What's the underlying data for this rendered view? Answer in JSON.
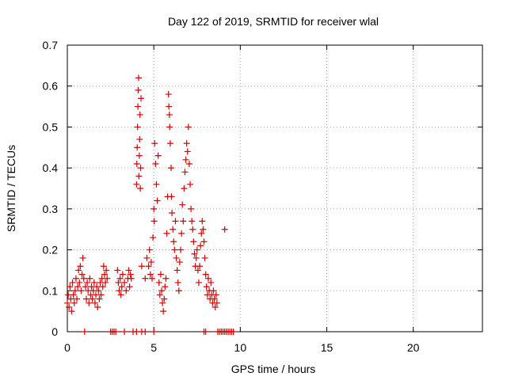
{
  "chart_data": {
    "type": "scatter",
    "title": "Day 122 of 2019, SRMTID for receiver wlal",
    "xlabel": "GPS time / hours",
    "ylabel": "SRMTID / TECUs",
    "xlim": [
      0,
      24
    ],
    "ylim": [
      0,
      0.7
    ],
    "xticks": [
      0,
      5,
      10,
      15,
      20
    ],
    "xtick_labels": [
      "0",
      "5",
      "10",
      "15",
      "20"
    ],
    "yticks": [
      0,
      0.1,
      0.2,
      0.3,
      0.4,
      0.5,
      0.6,
      0.7
    ],
    "ytick_labels": [
      "0",
      "0.1",
      "0.2",
      "0.3",
      "0.4",
      "0.5",
      "0.6",
      "0.7"
    ],
    "grid": true,
    "marker": "+",
    "color": "#d40000",
    "series": [
      {
        "name": "SRMTID",
        "points": [
          [
            0.0,
            0.07
          ],
          [
            0.05,
            0.09
          ],
          [
            0.1,
            0.06
          ],
          [
            0.15,
            0.11
          ],
          [
            0.2,
            0.08
          ],
          [
            0.25,
            0.05
          ],
          [
            0.3,
            0.12
          ],
          [
            0.35,
            0.09
          ],
          [
            0.4,
            0.07
          ],
          [
            0.45,
            0.1
          ],
          [
            0.5,
            0.13
          ],
          [
            0.55,
            0.08
          ],
          [
            0.6,
            0.11
          ],
          [
            0.65,
            0.15
          ],
          [
            0.7,
            0.12
          ],
          [
            0.75,
            0.16
          ],
          [
            0.8,
            0.1
          ],
          [
            0.85,
            0.14
          ],
          [
            0.9,
            0.18
          ],
          [
            0.95,
            0.13
          ],
          [
            1.05,
            0.11
          ],
          [
            1.1,
            0.08
          ],
          [
            1.15,
            0.12
          ],
          [
            1.2,
            0.1
          ],
          [
            1.25,
            0.07
          ],
          [
            1.3,
            0.13
          ],
          [
            1.35,
            0.09
          ],
          [
            1.4,
            0.11
          ],
          [
            1.45,
            0.08
          ],
          [
            1.5,
            0.1
          ],
          [
            1.55,
            0.12
          ],
          [
            1.6,
            0.07
          ],
          [
            1.65,
            0.09
          ],
          [
            1.7,
            0.11
          ],
          [
            1.75,
            0.06
          ],
          [
            1.8,
            0.1
          ],
          [
            1.85,
            0.08
          ],
          [
            1.9,
            0.12
          ],
          [
            1.95,
            0.09
          ],
          [
            2.0,
            0.13
          ],
          [
            2.05,
            0.11
          ],
          [
            2.1,
            0.16
          ],
          [
            2.15,
            0.14
          ],
          [
            2.2,
            0.12
          ],
          [
            2.25,
            0.15
          ],
          [
            2.3,
            0.13
          ],
          [
            2.9,
            0.15
          ],
          [
            2.95,
            0.12
          ],
          [
            3.0,
            0.1
          ],
          [
            3.05,
            0.13
          ],
          [
            3.1,
            0.09
          ],
          [
            3.15,
            0.11
          ],
          [
            3.2,
            0.14
          ],
          [
            3.3,
            0.12
          ],
          [
            3.4,
            0.1
          ],
          [
            3.5,
            0.13
          ],
          [
            3.55,
            0.15
          ],
          [
            3.6,
            0.11
          ],
          [
            3.65,
            0.14
          ],
          [
            3.7,
            0.13
          ],
          [
            4.0,
            0.36
          ],
          [
            4.02,
            0.41
          ],
          [
            4.04,
            0.45
          ],
          [
            4.06,
            0.5
          ],
          [
            4.08,
            0.55
          ],
          [
            4.1,
            0.59
          ],
          [
            4.12,
            0.62
          ],
          [
            4.14,
            0.38
          ],
          [
            4.16,
            0.43
          ],
          [
            4.18,
            0.47
          ],
          [
            4.2,
            0.53
          ],
          [
            4.22,
            0.35
          ],
          [
            4.24,
            0.4
          ],
          [
            4.26,
            0.57
          ],
          [
            4.3,
            0.16
          ],
          [
            4.5,
            0.13
          ],
          [
            4.6,
            0.18
          ],
          [
            4.7,
            0.16
          ],
          [
            4.75,
            0.2
          ],
          [
            4.8,
            0.14
          ],
          [
            4.85,
            0.17
          ],
          [
            4.9,
            0.13
          ],
          [
            4.95,
            0.23
          ],
          [
            5.0,
            0.3
          ],
          [
            5.02,
            0.27
          ],
          [
            5.05,
            0.46
          ],
          [
            5.1,
            0.41
          ],
          [
            5.15,
            0.36
          ],
          [
            5.2,
            0.32
          ],
          [
            5.25,
            0.43
          ],
          [
            5.3,
            0.12
          ],
          [
            5.35,
            0.09
          ],
          [
            5.4,
            0.14
          ],
          [
            5.45,
            0.1
          ],
          [
            5.5,
            0.07
          ],
          [
            5.55,
            0.05
          ],
          [
            5.6,
            0.08
          ],
          [
            5.65,
            0.11
          ],
          [
            5.7,
            0.13
          ],
          [
            5.75,
            0.24
          ],
          [
            5.8,
            0.33
          ],
          [
            5.85,
            0.58
          ],
          [
            5.87,
            0.55
          ],
          [
            5.9,
            0.53
          ],
          [
            5.92,
            0.5
          ],
          [
            5.95,
            0.46
          ],
          [
            6.0,
            0.4
          ],
          [
            6.02,
            0.33
          ],
          [
            6.05,
            0.29
          ],
          [
            6.1,
            0.25
          ],
          [
            6.15,
            0.22
          ],
          [
            6.2,
            0.2
          ],
          [
            6.25,
            0.27
          ],
          [
            6.3,
            0.18
          ],
          [
            6.35,
            0.15
          ],
          [
            6.4,
            0.12
          ],
          [
            6.45,
            0.1
          ],
          [
            6.5,
            0.17
          ],
          [
            6.55,
            0.2
          ],
          [
            6.6,
            0.24
          ],
          [
            6.65,
            0.31
          ],
          [
            6.7,
            0.27
          ],
          [
            6.75,
            0.35
          ],
          [
            6.8,
            0.39
          ],
          [
            6.85,
            0.42
          ],
          [
            6.9,
            0.46
          ],
          [
            6.95,
            0.44
          ],
          [
            7.0,
            0.5
          ],
          [
            7.05,
            0.41
          ],
          [
            7.1,
            0.36
          ],
          [
            7.15,
            0.3
          ],
          [
            7.2,
            0.27
          ],
          [
            7.25,
            0.25
          ],
          [
            7.3,
            0.22
          ],
          [
            7.35,
            0.19
          ],
          [
            7.4,
            0.16
          ],
          [
            7.45,
            0.18
          ],
          [
            7.5,
            0.2
          ],
          [
            7.55,
            0.15
          ],
          [
            7.6,
            0.12
          ],
          [
            7.65,
            0.16
          ],
          [
            7.7,
            0.21
          ],
          [
            7.75,
            0.24
          ],
          [
            7.8,
            0.27
          ],
          [
            7.85,
            0.25
          ],
          [
            7.9,
            0.22
          ],
          [
            7.95,
            0.18
          ],
          [
            8.0,
            0.14
          ],
          [
            8.05,
            0.11
          ],
          [
            8.1,
            0.09
          ],
          [
            8.15,
            0.13
          ],
          [
            8.2,
            0.1
          ],
          [
            8.25,
            0.08
          ],
          [
            8.3,
            0.12
          ],
          [
            8.35,
            0.09
          ],
          [
            8.4,
            0.07
          ],
          [
            8.45,
            0.1
          ],
          [
            8.5,
            0.08
          ],
          [
            8.55,
            0.06
          ],
          [
            8.6,
            0.09
          ],
          [
            8.65,
            0.07
          ],
          [
            9.1,
            0.25
          ],
          [
            1.0,
            0.0
          ],
          [
            2.5,
            0.0
          ],
          [
            2.6,
            0.0
          ],
          [
            2.7,
            0.0
          ],
          [
            2.8,
            0.0
          ],
          [
            3.3,
            0.0
          ],
          [
            3.8,
            0.0
          ],
          [
            4.0,
            0.0
          ],
          [
            4.3,
            0.0
          ],
          [
            4.5,
            0.0
          ],
          [
            5.0,
            0.0
          ],
          [
            7.9,
            0.0
          ],
          [
            8.0,
            0.0
          ],
          [
            8.7,
            0.0
          ],
          [
            8.8,
            0.0
          ],
          [
            8.9,
            0.0
          ],
          [
            9.0,
            0.0
          ],
          [
            9.1,
            0.0
          ],
          [
            9.2,
            0.0
          ],
          [
            9.3,
            0.0
          ],
          [
            9.4,
            0.0
          ],
          [
            9.5,
            0.0
          ],
          [
            9.6,
            0.0
          ]
        ]
      }
    ]
  }
}
